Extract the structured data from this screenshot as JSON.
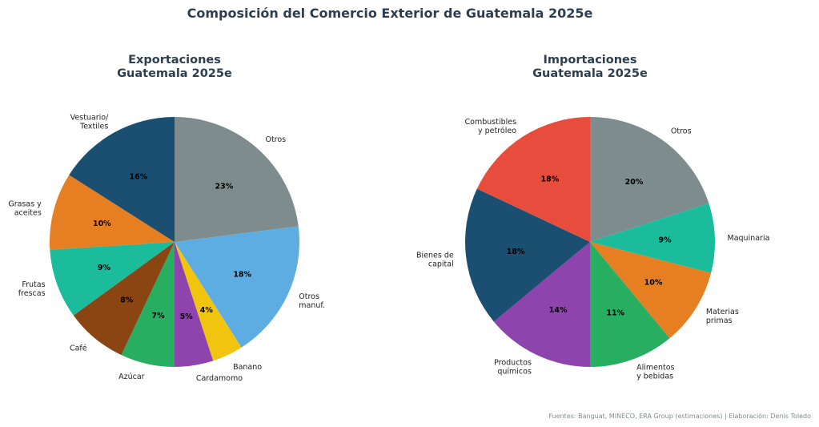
{
  "title": "Composición del Comercio Exterior de Guatemala 2025e",
  "source_note": "Fuentes: Banguat, MINECO, ERA Group (estimaciones) | Elaboración: Denis Toledo",
  "chart_data": [
    {
      "type": "pie",
      "title_lines": [
        "Exportaciones",
        "Guatemala 2025e"
      ],
      "start_angle_deg": 90,
      "direction": "clockwise",
      "slices": [
        {
          "label": [
            "Otros"
          ],
          "value": 23,
          "pct_label": "23%",
          "color": "#7f8c8d"
        },
        {
          "label": [
            "Otros",
            "manuf."
          ],
          "value": 18,
          "pct_label": "18%",
          "color": "#5dade2"
        },
        {
          "label": [
            "Banano"
          ],
          "value": 4,
          "pct_label": "4%",
          "color": "#f1c40f"
        },
        {
          "label": [
            "Cardamomo"
          ],
          "value": 5,
          "pct_label": "5%",
          "color": "#8e44ad"
        },
        {
          "label": [
            "Azúcar"
          ],
          "value": 7,
          "pct_label": "7%",
          "color": "#27ae60"
        },
        {
          "label": [
            "Café"
          ],
          "value": 8,
          "pct_label": "8%",
          "color": "#8b4513"
        },
        {
          "label": [
            "Frutas",
            "frescas"
          ],
          "value": 9,
          "pct_label": "9%",
          "color": "#1abc9c"
        },
        {
          "label": [
            "Grasas y",
            "aceites"
          ],
          "value": 10,
          "pct_label": "10%",
          "color": "#e67e22"
        },
        {
          "label": [
            "Vestuario/",
            "Textiles"
          ],
          "value": 16,
          "pct_label": "16%",
          "color": "#1b4f72"
        }
      ]
    },
    {
      "type": "pie",
      "title_lines": [
        "Importaciones",
        "Guatemala 2025e"
      ],
      "start_angle_deg": 90,
      "direction": "clockwise",
      "slices": [
        {
          "label": [
            "Otros"
          ],
          "value": 20,
          "pct_label": "20%",
          "color": "#7f8c8d"
        },
        {
          "label": [
            "Maquinaria"
          ],
          "value": 9,
          "pct_label": "9%",
          "color": "#1abc9c"
        },
        {
          "label": [
            "Materias",
            "primas"
          ],
          "value": 10,
          "pct_label": "10%",
          "color": "#e67e22"
        },
        {
          "label": [
            "Alimentos",
            "y bebidas"
          ],
          "value": 11,
          "pct_label": "11%",
          "color": "#27ae60"
        },
        {
          "label": [
            "Productos",
            "químicos"
          ],
          "value": 14,
          "pct_label": "14%",
          "color": "#8e44ad"
        },
        {
          "label": [
            "Bienes de",
            "capital"
          ],
          "value": 18,
          "pct_label": "18%",
          "color": "#1b4f72"
        },
        {
          "label": [
            "Combustibles",
            "y petróleo"
          ],
          "value": 18,
          "pct_label": "18%",
          "color": "#e74c3c"
        }
      ]
    }
  ]
}
